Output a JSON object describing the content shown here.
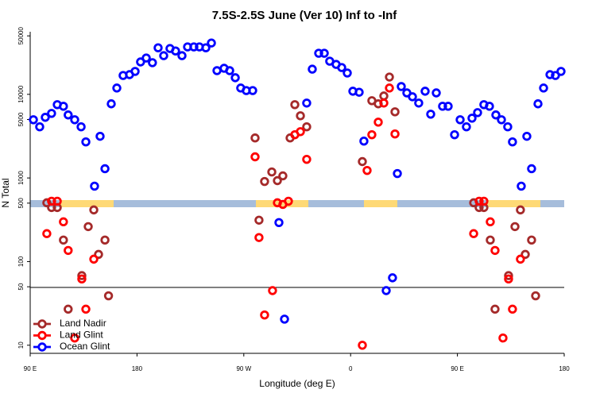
{
  "chart_data": {
    "type": "scatter",
    "title": "7.5S-2.5S June (Ver 10)   Inf to -Inf",
    "xlabel": "Longitude (deg E)",
    "ylabel": "N Total",
    "xlim": [
      90,
      540
    ],
    "xticks": [
      {
        "value": 90,
        "label": "90 E"
      },
      180,
      {
        "value": 270,
        "label": "90 W"
      },
      {
        "value": 360,
        "label": "0"
      },
      {
        "value": 450,
        "label": "90 E"
      },
      {
        "value": 540,
        "label": "180"
      }
    ],
    "ylim": [
      8,
      56000
    ],
    "yscale": "log",
    "yticks": [
      10,
      50,
      100,
      500,
      1000,
      5000,
      10000,
      50000
    ],
    "legend": "lower left",
    "series": [
      {
        "name": "Land Nadir",
        "color": "#a52a2a",
        "x": [
          104,
          108,
          112.8,
          118,
          122,
          133.5,
          138.9,
          143.6,
          147.6,
          153,
          156,
          279.5,
          282.8,
          287.5,
          293.6,
          298.3,
          302.9,
          309,
          313,
          317.7,
          323,
          369.9,
          377.9,
          383.3,
          388,
          392.7,
          397.4,
          463.7,
          468.3,
          472.3,
          477.7,
          481.7,
          493.1,
          498.5,
          503.1,
          507.2,
          512.5,
          515.9
        ],
        "values": [
          505,
          443,
          443,
          181,
          27,
          68,
          262,
          415,
          122,
          181,
          39,
          3010,
          313,
          908,
          1180,
          929,
          1060,
          3010,
          7530,
          5540,
          4090,
          1570,
          8390,
          7700,
          9560,
          16100,
          6180,
          505,
          443,
          443,
          181,
          27,
          68,
          262,
          415,
          122,
          181,
          39
        ]
      },
      {
        "name": "Land Glint",
        "color": "#ff0000",
        "x": [
          104,
          108,
          112.8,
          118,
          122,
          127.5,
          133.5,
          136.9,
          143.6,
          279.5,
          282.8,
          287.5,
          294.2,
          298.3,
          302.9,
          307.6,
          313,
          317.7,
          323,
          369.9,
          373.9,
          377.9,
          383.3,
          388,
          392.7,
          397.4,
          463.7,
          468.3,
          472.3,
          477.7,
          481.7,
          488.4,
          493.1,
          496.4,
          503.1
        ],
        "values": [
          216,
          527,
          527,
          299,
          136,
          12.2,
          62,
          27,
          107,
          1790,
          194,
          23,
          45,
          505,
          483,
          527,
          3290,
          3580,
          1670,
          10,
          1230,
          3290,
          4650,
          7870,
          11900,
          3360,
          216,
          527,
          527,
          299,
          136,
          12.2,
          62,
          27,
          107
        ]
      },
      {
        "name": "Ocean Glint",
        "color": "#0000ff",
        "x": [
          92.7,
          98,
          102.7,
          108,
          112.8,
          118,
          122,
          127.5,
          132.9,
          136.9,
          144.2,
          148.9,
          153,
          158.3,
          163,
          168.3,
          173.7,
          178.4,
          183,
          187.8,
          193,
          197.8,
          202.5,
          207.8,
          212.5,
          217.9,
          222.6,
          227.9,
          232.6,
          238,
          242.7,
          247.4,
          253.4,
          258.1,
          262.8,
          267.4,
          272.1,
          277.5,
          299.6,
          304.3,
          323,
          327.7,
          333.1,
          337.8,
          342.4,
          347.8,
          352.5,
          357.2,
          361.9,
          367.2,
          371.2,
          390,
          395.3,
          399.4,
          402.7,
          407.4,
          412.1,
          417.4,
          422.8,
          427.5,
          432.2,
          437.5,
          442.2,
          447.6,
          452.3,
          457.6,
          462.3,
          467,
          472.3,
          477,
          482.4,
          487.1,
          492.4,
          496.4,
          503.8,
          508.5,
          512.5,
          517.9,
          522.6,
          528,
          532.6,
          537.3
        ],
        "values": [
          4970,
          4090,
          5310,
          5920,
          7530,
          7200,
          5670,
          4970,
          4090,
          2700,
          798,
          3150,
          1290,
          7700,
          11900,
          16800,
          17200,
          18800,
          24400,
          27200,
          23900,
          36000,
          29000,
          35300,
          33000,
          29000,
          36900,
          36900,
          36900,
          36000,
          41100,
          19200,
          20500,
          19200,
          15800,
          11900,
          11100,
          11100,
          293,
          20.5,
          7870,
          20000,
          31000,
          31000,
          24900,
          22800,
          20900,
          18000,
          10900,
          10600,
          2760,
          45,
          64,
          1130,
          12400,
          10400,
          9350,
          7870,
          10900,
          5790,
          10400,
          7200,
          7200,
          3290,
          4970,
          4090,
          5190,
          6050,
          7530,
          7200,
          5670,
          4970,
          4090,
          2700,
          798,
          3150,
          1290,
          7700,
          11900,
          17200,
          16800,
          18800
        ]
      }
    ]
  }
}
